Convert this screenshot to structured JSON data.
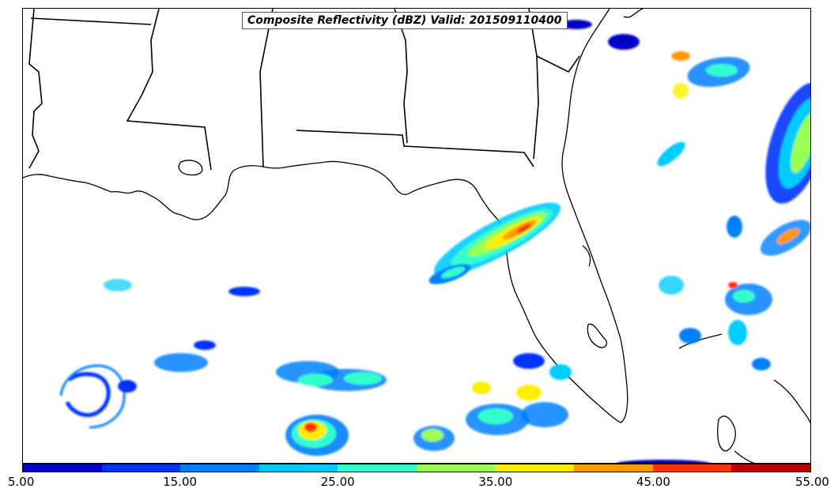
{
  "title": "Composite Reflectivity (dBZ) Valid: 201509110400",
  "colorbar": {
    "colors": [
      "#0000c8",
      "#0033ff",
      "#0080ff",
      "#00ccff",
      "#33ffcc",
      "#99ff55",
      "#ffee00",
      "#ff9900",
      "#ff3300",
      "#b80000"
    ],
    "ticks": [
      "5.00",
      "15.00",
      "25.00",
      "35.00",
      "45.00",
      "55.00"
    ],
    "min": 5,
    "max": 55
  },
  "map": {
    "region": "Gulf of Mexico / southeastern United States",
    "features": [
      "state-borders",
      "coastline",
      "radar-echoes"
    ]
  }
}
